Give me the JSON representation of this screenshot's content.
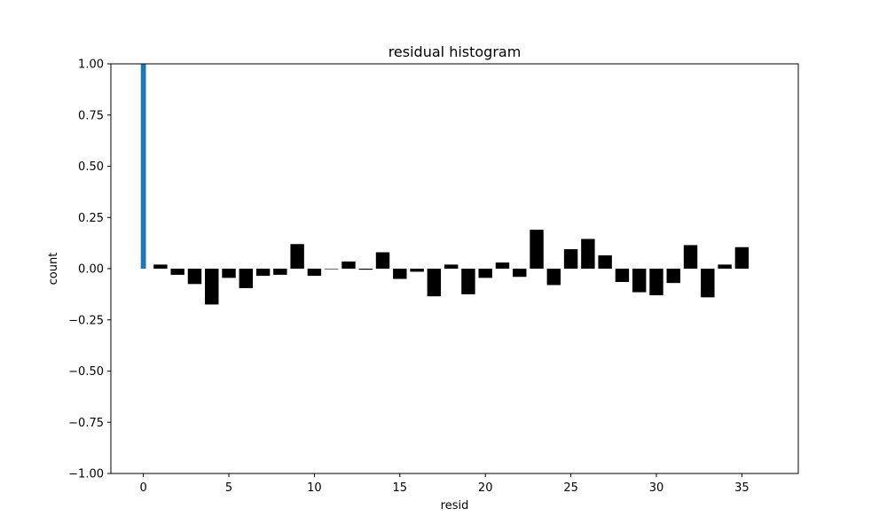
{
  "chart_data": {
    "type": "bar",
    "title": "residual histogram",
    "xlabel": "resid",
    "ylabel": "count",
    "xlim": [
      -1.9,
      38.3
    ],
    "ylim": [
      -1.0,
      1.0
    ],
    "xticks": [
      0,
      5,
      10,
      15,
      20,
      25,
      30,
      35
    ],
    "yticks": [
      -1.0,
      -0.75,
      -0.5,
      -0.25,
      0.0,
      0.25,
      0.5,
      0.75,
      1.0
    ],
    "ytick_labels": [
      "−1.00",
      "−0.75",
      "−0.50",
      "−0.25",
      "0.00",
      "0.25",
      "0.50",
      "0.75",
      "1.00"
    ],
    "grid": false,
    "series": [
      {
        "color": "#1f77b4",
        "bar_width": 0.3,
        "x": [
          0
        ],
        "values": [
          1.0
        ]
      },
      {
        "color": "#000000",
        "bar_width": 0.8,
        "x": [
          1,
          2,
          3,
          4,
          5,
          6,
          7,
          8,
          9,
          10,
          11,
          12,
          13,
          14,
          15,
          16,
          17,
          18,
          19,
          20,
          21,
          22,
          23,
          24,
          25,
          26,
          27,
          28,
          29,
          30,
          31,
          32,
          33,
          34,
          35
        ],
        "values": [
          0.02,
          -0.03,
          -0.075,
          -0.175,
          -0.045,
          -0.095,
          -0.035,
          -0.03,
          0.12,
          -0.035,
          0.0,
          0.035,
          -0.005,
          0.08,
          -0.05,
          -0.015,
          -0.135,
          0.02,
          -0.125,
          -0.045,
          0.03,
          -0.04,
          0.19,
          -0.08,
          0.095,
          0.145,
          0.065,
          -0.065,
          -0.115,
          -0.13,
          -0.07,
          0.115,
          -0.14,
          0.02,
          0.105
        ]
      }
    ]
  }
}
